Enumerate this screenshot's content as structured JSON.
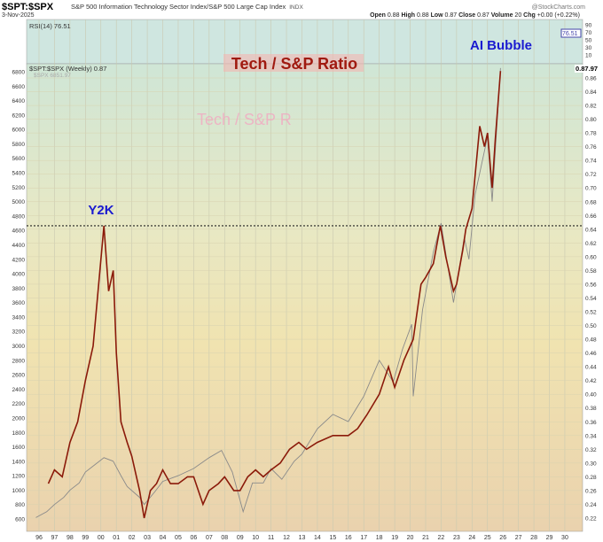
{
  "header": {
    "symbol": "$SPT:$SPX",
    "description": "S&P 500 Information Technology Sector Index/S&P 500 Large Cap Index",
    "exchange": "INDX",
    "date": "3-Nov-2025",
    "brand": "@StockCharts.com",
    "quote": {
      "open_label": "Open",
      "open": "0.88",
      "high_label": "High",
      "high": "0.88",
      "low_label": "Low",
      "low": "0.87",
      "close_label": "Close",
      "close": "0.87",
      "volume_label": "Volume",
      "volume": "20",
      "chg_label": "Chg",
      "chg": "+0.00 (+0.22%)"
    }
  },
  "rsi": {
    "label": "RSI(14) 76.51",
    "value": 76.51,
    "value_text": "76.51",
    "ticks": [
      "90",
      "70",
      "50",
      "30",
      "10"
    ]
  },
  "legend": {
    "ratio": "$SPT:$SPX (Weekly) 0.87",
    "spx": "$SPX 6851.97",
    "ratio_last": "0.87",
    "spx_last": ".97"
  },
  "annotations": {
    "title": "Tech / S&P Ratio",
    "ghost": "Tech / S&P R",
    "ai": "AI Bubble",
    "y2k": "Y2K"
  },
  "colors": {
    "ratio": "#8b1a0a",
    "spx": "#8a8a8a",
    "title": "#a01a10",
    "blue": "#1a1ad0"
  },
  "chart_data": {
    "type": "line",
    "title": "Tech / S&P Ratio",
    "x_ticks": [
      "96",
      "97",
      "98",
      "99",
      "00",
      "01",
      "02",
      "03",
      "04",
      "05",
      "06",
      "07",
      "08",
      "09",
      "10",
      "11",
      "12",
      "13",
      "14",
      "15",
      "16",
      "17",
      "18",
      "19",
      "20",
      "21",
      "22",
      "23",
      "24",
      "25",
      "26",
      "27",
      "28",
      "29",
      "30"
    ],
    "xlim": [
      1995.8,
      2030.8
    ],
    "right_axis": {
      "ylim": [
        0.21,
        0.87
      ],
      "ticks": [
        "0.22",
        "0.24",
        "0.26",
        "0.28",
        "0.30",
        "0.32",
        "0.34",
        "0.36",
        "0.38",
        "0.40",
        "0.42",
        "0.44",
        "0.46",
        "0.48",
        "0.50",
        "0.52",
        "0.54",
        "0.56",
        "0.58",
        "0.60",
        "0.62",
        "0.64",
        "0.66",
        "0.68",
        "0.70",
        "0.72",
        "0.74",
        "0.76",
        "0.78",
        "0.80",
        "0.82",
        "0.84",
        "0.86"
      ]
    },
    "left_axis": {
      "ylim": [
        500,
        6900
      ],
      "ticks": [
        "600",
        "800",
        "1000",
        "1200",
        "1400",
        "1600",
        "1800",
        "2000",
        "2200",
        "2400",
        "2600",
        "2800",
        "3000",
        "3200",
        "3400",
        "3600",
        "3800",
        "4000",
        "4200",
        "4400",
        "4600",
        "4800",
        "5000",
        "5200",
        "5400",
        "5600",
        "5800",
        "6000",
        "6200",
        "6400",
        "6600",
        "6800"
      ]
    },
    "reference_line": 0.645,
    "series": [
      {
        "name": "$SPT:$SPX (Weekly)",
        "axis": "right",
        "points": [
          [
            1996.6,
            0.27
          ],
          [
            1997.0,
            0.29
          ],
          [
            1997.5,
            0.28
          ],
          [
            1998.0,
            0.33
          ],
          [
            1998.5,
            0.36
          ],
          [
            1999.0,
            0.42
          ],
          [
            1999.5,
            0.47
          ],
          [
            2000.2,
            0.645
          ],
          [
            2000.5,
            0.55
          ],
          [
            2000.8,
            0.58
          ],
          [
            2001.0,
            0.46
          ],
          [
            2001.3,
            0.36
          ],
          [
            2001.7,
            0.33
          ],
          [
            2002.0,
            0.31
          ],
          [
            2002.5,
            0.26
          ],
          [
            2002.8,
            0.22
          ],
          [
            2003.2,
            0.26
          ],
          [
            2003.6,
            0.27
          ],
          [
            2004.0,
            0.29
          ],
          [
            2004.5,
            0.27
          ],
          [
            2005.0,
            0.27
          ],
          [
            2005.6,
            0.28
          ],
          [
            2006.0,
            0.28
          ],
          [
            2006.6,
            0.24
          ],
          [
            2007.0,
            0.26
          ],
          [
            2007.6,
            0.27
          ],
          [
            2008.0,
            0.28
          ],
          [
            2008.6,
            0.26
          ],
          [
            2009.0,
            0.26
          ],
          [
            2009.5,
            0.28
          ],
          [
            2010.0,
            0.29
          ],
          [
            2010.5,
            0.28
          ],
          [
            2011.0,
            0.29
          ],
          [
            2011.6,
            0.3
          ],
          [
            2012.2,
            0.32
          ],
          [
            2012.8,
            0.33
          ],
          [
            2013.3,
            0.32
          ],
          [
            2014.0,
            0.33
          ],
          [
            2015.0,
            0.34
          ],
          [
            2016.0,
            0.34
          ],
          [
            2016.6,
            0.35
          ],
          [
            2017.2,
            0.37
          ],
          [
            2018.0,
            0.4
          ],
          [
            2018.6,
            0.44
          ],
          [
            2019.0,
            0.41
          ],
          [
            2019.6,
            0.45
          ],
          [
            2020.2,
            0.48
          ],
          [
            2020.7,
            0.56
          ],
          [
            2021.0,
            0.57
          ],
          [
            2021.5,
            0.59
          ],
          [
            2021.95,
            0.645
          ],
          [
            2022.3,
            0.6
          ],
          [
            2022.8,
            0.55
          ],
          [
            2023.0,
            0.56
          ],
          [
            2023.4,
            0.61
          ],
          [
            2023.6,
            0.64
          ],
          [
            2024.0,
            0.67
          ],
          [
            2024.5,
            0.79
          ],
          [
            2024.8,
            0.76
          ],
          [
            2025.0,
            0.78
          ],
          [
            2025.3,
            0.7
          ],
          [
            2025.5,
            0.77
          ],
          [
            2025.84,
            0.87
          ]
        ]
      },
      {
        "name": "$SPX",
        "axis": "left",
        "points": [
          [
            1995.8,
            620
          ],
          [
            1996.5,
            700
          ],
          [
            1997.0,
            800
          ],
          [
            1997.6,
            900
          ],
          [
            1998.0,
            1000
          ],
          [
            1998.6,
            1100
          ],
          [
            1999.0,
            1250
          ],
          [
            1999.6,
            1350
          ],
          [
            2000.2,
            1450
          ],
          [
            2000.8,
            1400
          ],
          [
            2001.3,
            1200
          ],
          [
            2001.7,
            1050
          ],
          [
            2002.5,
            900
          ],
          [
            2002.8,
            800
          ],
          [
            2003.5,
            980
          ],
          [
            2004.0,
            1120
          ],
          [
            2005.0,
            1200
          ],
          [
            2006.0,
            1300
          ],
          [
            2007.0,
            1450
          ],
          [
            2007.8,
            1550
          ],
          [
            2008.5,
            1250
          ],
          [
            2009.2,
            700
          ],
          [
            2009.8,
            1100
          ],
          [
            2010.5,
            1100
          ],
          [
            2011.0,
            1300
          ],
          [
            2011.7,
            1150
          ],
          [
            2012.5,
            1400
          ],
          [
            2013.0,
            1500
          ],
          [
            2014.0,
            1850
          ],
          [
            2015.0,
            2050
          ],
          [
            2016.0,
            1950
          ],
          [
            2017.0,
            2300
          ],
          [
            2018.0,
            2800
          ],
          [
            2018.9,
            2500
          ],
          [
            2019.5,
            2950
          ],
          [
            2020.1,
            3300
          ],
          [
            2020.2,
            2300
          ],
          [
            2020.8,
            3500
          ],
          [
            2021.5,
            4300
          ],
          [
            2022.0,
            4700
          ],
          [
            2022.8,
            3600
          ],
          [
            2023.5,
            4500
          ],
          [
            2023.8,
            4200
          ],
          [
            2024.2,
            5100
          ],
          [
            2025.0,
            5900
          ],
          [
            2025.3,
            5000
          ],
          [
            2025.84,
            6852
          ]
        ]
      }
    ]
  }
}
